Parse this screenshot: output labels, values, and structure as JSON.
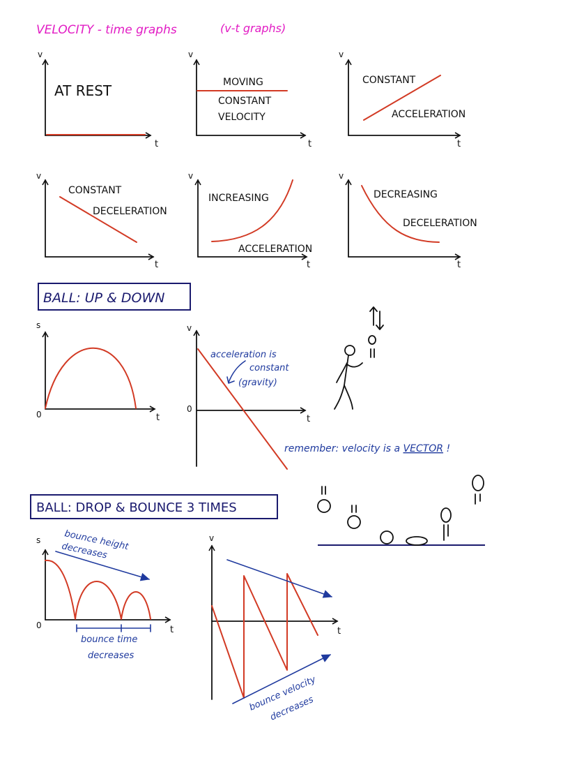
{
  "title": "VELOCITY - time graphs",
  "subtitle": "(v-t graphs)",
  "colors": {
    "title": "#e21cc4",
    "curve": "#d23a24",
    "ink": "#111111",
    "note": "#1f3a9e",
    "box": "#1a1a6e"
  },
  "axis": {
    "v": "v",
    "t": "t",
    "s": "s",
    "origin": "0"
  },
  "graphs": {
    "at_rest": "AT REST",
    "moving_1": "MOVING",
    "moving_2": "CONSTANT",
    "moving_3": "VELOCITY",
    "const_acc_1": "CONSTANT",
    "const_acc_2": "ACCELERATION",
    "const_dec_1": "CONSTANT",
    "const_dec_2": "DECELERATION",
    "inc_acc_1": "INCREASING",
    "inc_acc_2": "ACCELERATION",
    "dec_dec_1": "DECREASING",
    "dec_dec_2": "DECELERATION"
  },
  "ball_updown": {
    "heading": "BALL: UP & DOWN",
    "note_1": "acceleration is",
    "note_2": "constant",
    "note_3": "(gravity)",
    "remember_prefix": "remember:  velocity is a ",
    "remember_vector": "VECTOR",
    "remember_suffix": " !"
  },
  "ball_bounce": {
    "heading": "BALL: DROP & BOUNCE 3 TIMES",
    "height_1": "bounce height",
    "height_2": "decreases",
    "time_1": "bounce  time",
    "time_2": "decreases",
    "vel_1": "bounce velocity",
    "vel_2": "decreases"
  }
}
